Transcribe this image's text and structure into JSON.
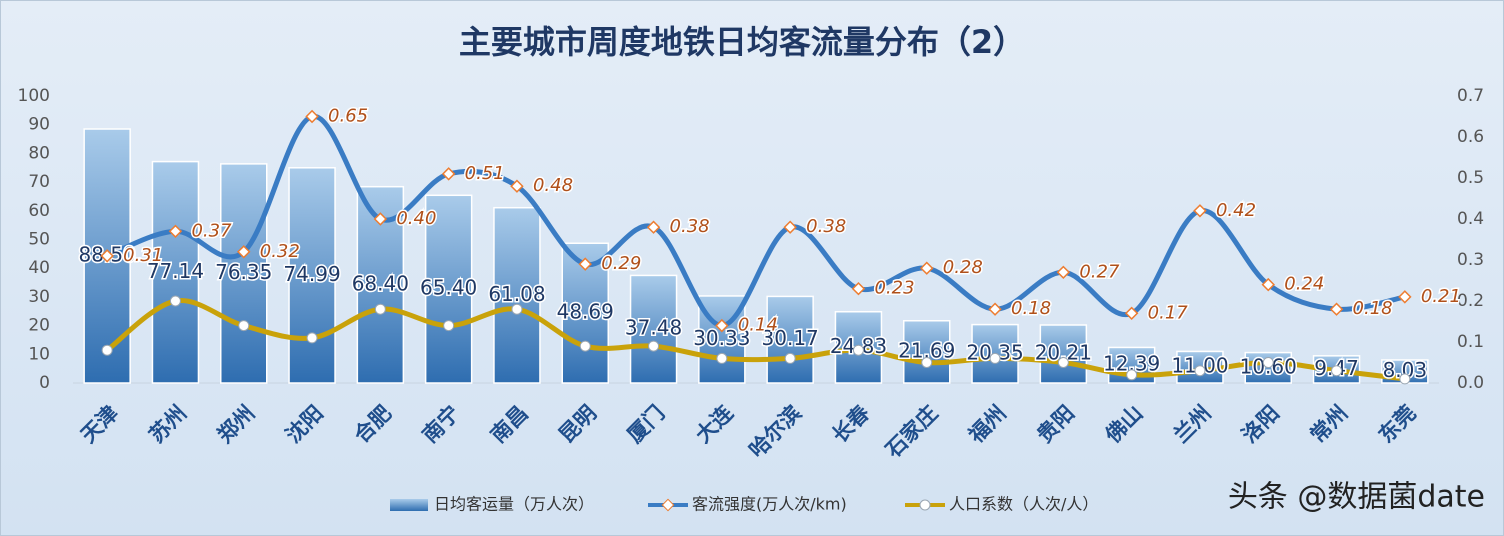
{
  "chart_data": {
    "type": "combo",
    "title": "主要城市周度地铁日均客流量分布（2）",
    "categories": [
      "天津",
      "苏州",
      "郑州",
      "沈阳",
      "合肥",
      "南宁",
      "南昌",
      "昆明",
      "厦门",
      "大连",
      "哈尔滨",
      "长春",
      "石家庄",
      "福州",
      "贵阳",
      "佛山",
      "兰州",
      "洛阳",
      "常州",
      "东莞"
    ],
    "series": [
      {
        "name": "日均客运量（万人次）",
        "type": "bar",
        "color": "#2e6db0",
        "values": [
          88.5,
          77.14,
          76.35,
          74.99,
          68.4,
          65.4,
          61.08,
          48.69,
          37.48,
          30.33,
          30.17,
          24.83,
          21.69,
          20.35,
          20.21,
          12.39,
          11.0,
          10.6,
          9.47,
          8.03
        ],
        "value_labels": [
          "88.50",
          "77.14",
          "76.35",
          "74.99",
          "68.40",
          "65.40",
          "61.08",
          "48.69",
          "37.48",
          "30.33",
          "30.17",
          "24.83",
          "21.69",
          "20.35",
          "20.21",
          "12.39",
          "11.00",
          "10.60",
          "9.47",
          "8.03"
        ]
      },
      {
        "name": "客流强度(万人次/km)",
        "type": "line",
        "axis": "y2",
        "color": "#3a7cc4",
        "values": [
          0.31,
          0.37,
          0.32,
          0.65,
          0.4,
          0.51,
          0.48,
          0.29,
          0.38,
          0.14,
          0.38,
          0.23,
          0.28,
          0.18,
          0.27,
          0.17,
          0.42,
          0.24,
          0.18,
          0.21
        ],
        "value_labels": [
          "0.31",
          "0.37",
          "0.32",
          "0.65",
          "0.40",
          "0.51",
          "0.48",
          "0.29",
          "0.38",
          "0.14",
          "0.38",
          "0.23",
          "0.28",
          "0.18",
          "0.27",
          "0.17",
          "0.42",
          "0.24",
          "0.18",
          "0.21"
        ]
      },
      {
        "name": "人口系数（人次/人）",
        "type": "line",
        "axis": "y2",
        "color": "#c9a20a",
        "values": [
          0.08,
          0.2,
          0.14,
          0.11,
          0.18,
          0.14,
          0.18,
          0.09,
          0.09,
          0.06,
          0.06,
          0.08,
          0.05,
          0.06,
          0.05,
          0.02,
          0.03,
          0.05,
          0.03,
          0.01
        ]
      }
    ],
    "ylim": [
      0,
      100
    ],
    "yticks": [
      0,
      10,
      20,
      30,
      40,
      50,
      60,
      70,
      80,
      90,
      100
    ],
    "y2lim": [
      0,
      0.7
    ],
    "y2ticks": [
      {
        "value": 0,
        "label": "0.0"
      },
      0.1,
      0.2,
      0.3,
      0.4,
      0.5,
      0.6,
      0.7
    ],
    "legend": "bottom"
  },
  "watermark": "头条 @数据菌date"
}
